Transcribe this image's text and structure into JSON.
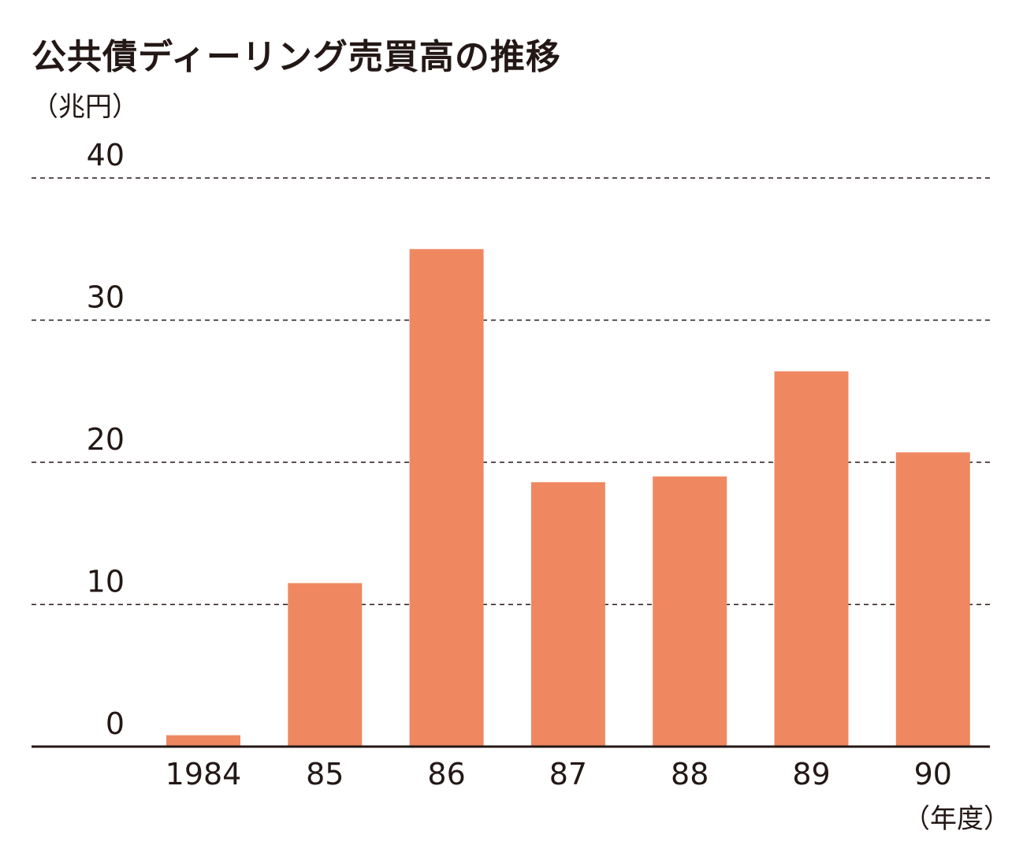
{
  "chart_data": {
    "type": "bar",
    "title": "公共債ディーリング売買高の推移",
    "ylabel": "（兆円）",
    "xlabel": "（年度）",
    "categories": [
      "1984",
      "85",
      "86",
      "87",
      "88",
      "89",
      "90"
    ],
    "values": [
      0.8,
      11.5,
      35.0,
      18.6,
      19.0,
      26.4,
      20.7
    ],
    "ylim": [
      0,
      40
    ],
    "yticks": [
      0,
      10,
      20,
      30,
      40
    ],
    "grid": true,
    "bar_color": "#ef8860"
  }
}
